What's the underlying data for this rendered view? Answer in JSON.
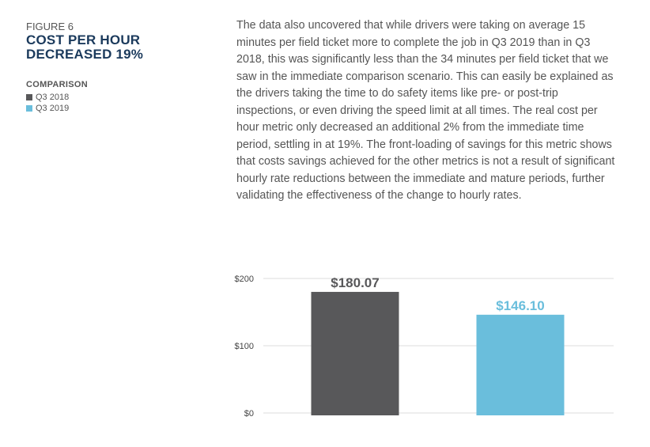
{
  "figure_label": "FIGURE 6",
  "figure_title": "COST PER HOUR DECREASED 19%",
  "comparison_heading": "COMPARISON",
  "legend": [
    {
      "label": "Q3 2018",
      "color": "#58585a"
    },
    {
      "label": "Q3 2019",
      "color": "#6abedc"
    }
  ],
  "body_text": "The data also uncovered that while drivers were taking on average 15 minutes per field ticket more to complete the job in Q3 2019 than in Q3 2018, this was significantly less than the 34 minutes per field ticket that we saw in the immediate comparison scenario. This can easily be explained as the drivers taking the time to do safety items like pre- or post-trip inspections, or even driving the speed limit at all times. The real cost per hour metric only decreased an additional 2% from the immediate time period, settling in at 19%. The front-loading of savings for this metric shows that costs savings achieved for the other metrics is not a result of significant hourly rate reductions between the immediate and mature periods, further validating the effectiveness of the change to hourly rates.",
  "chart_data": {
    "type": "bar",
    "categories": [
      "Q3 2018",
      "Q3 2019"
    ],
    "values": [
      180.07,
      146.1
    ],
    "data_labels": [
      "$180.07",
      "$146.10"
    ],
    "colors": [
      "#58585a",
      "#6abedc"
    ],
    "label_colors": [
      "#58585a",
      "#6abedc"
    ],
    "ylim": [
      0,
      200
    ],
    "yticks": [
      0,
      100,
      200
    ],
    "ytick_labels": [
      "$0",
      "$100",
      "$200"
    ],
    "grid": true
  }
}
